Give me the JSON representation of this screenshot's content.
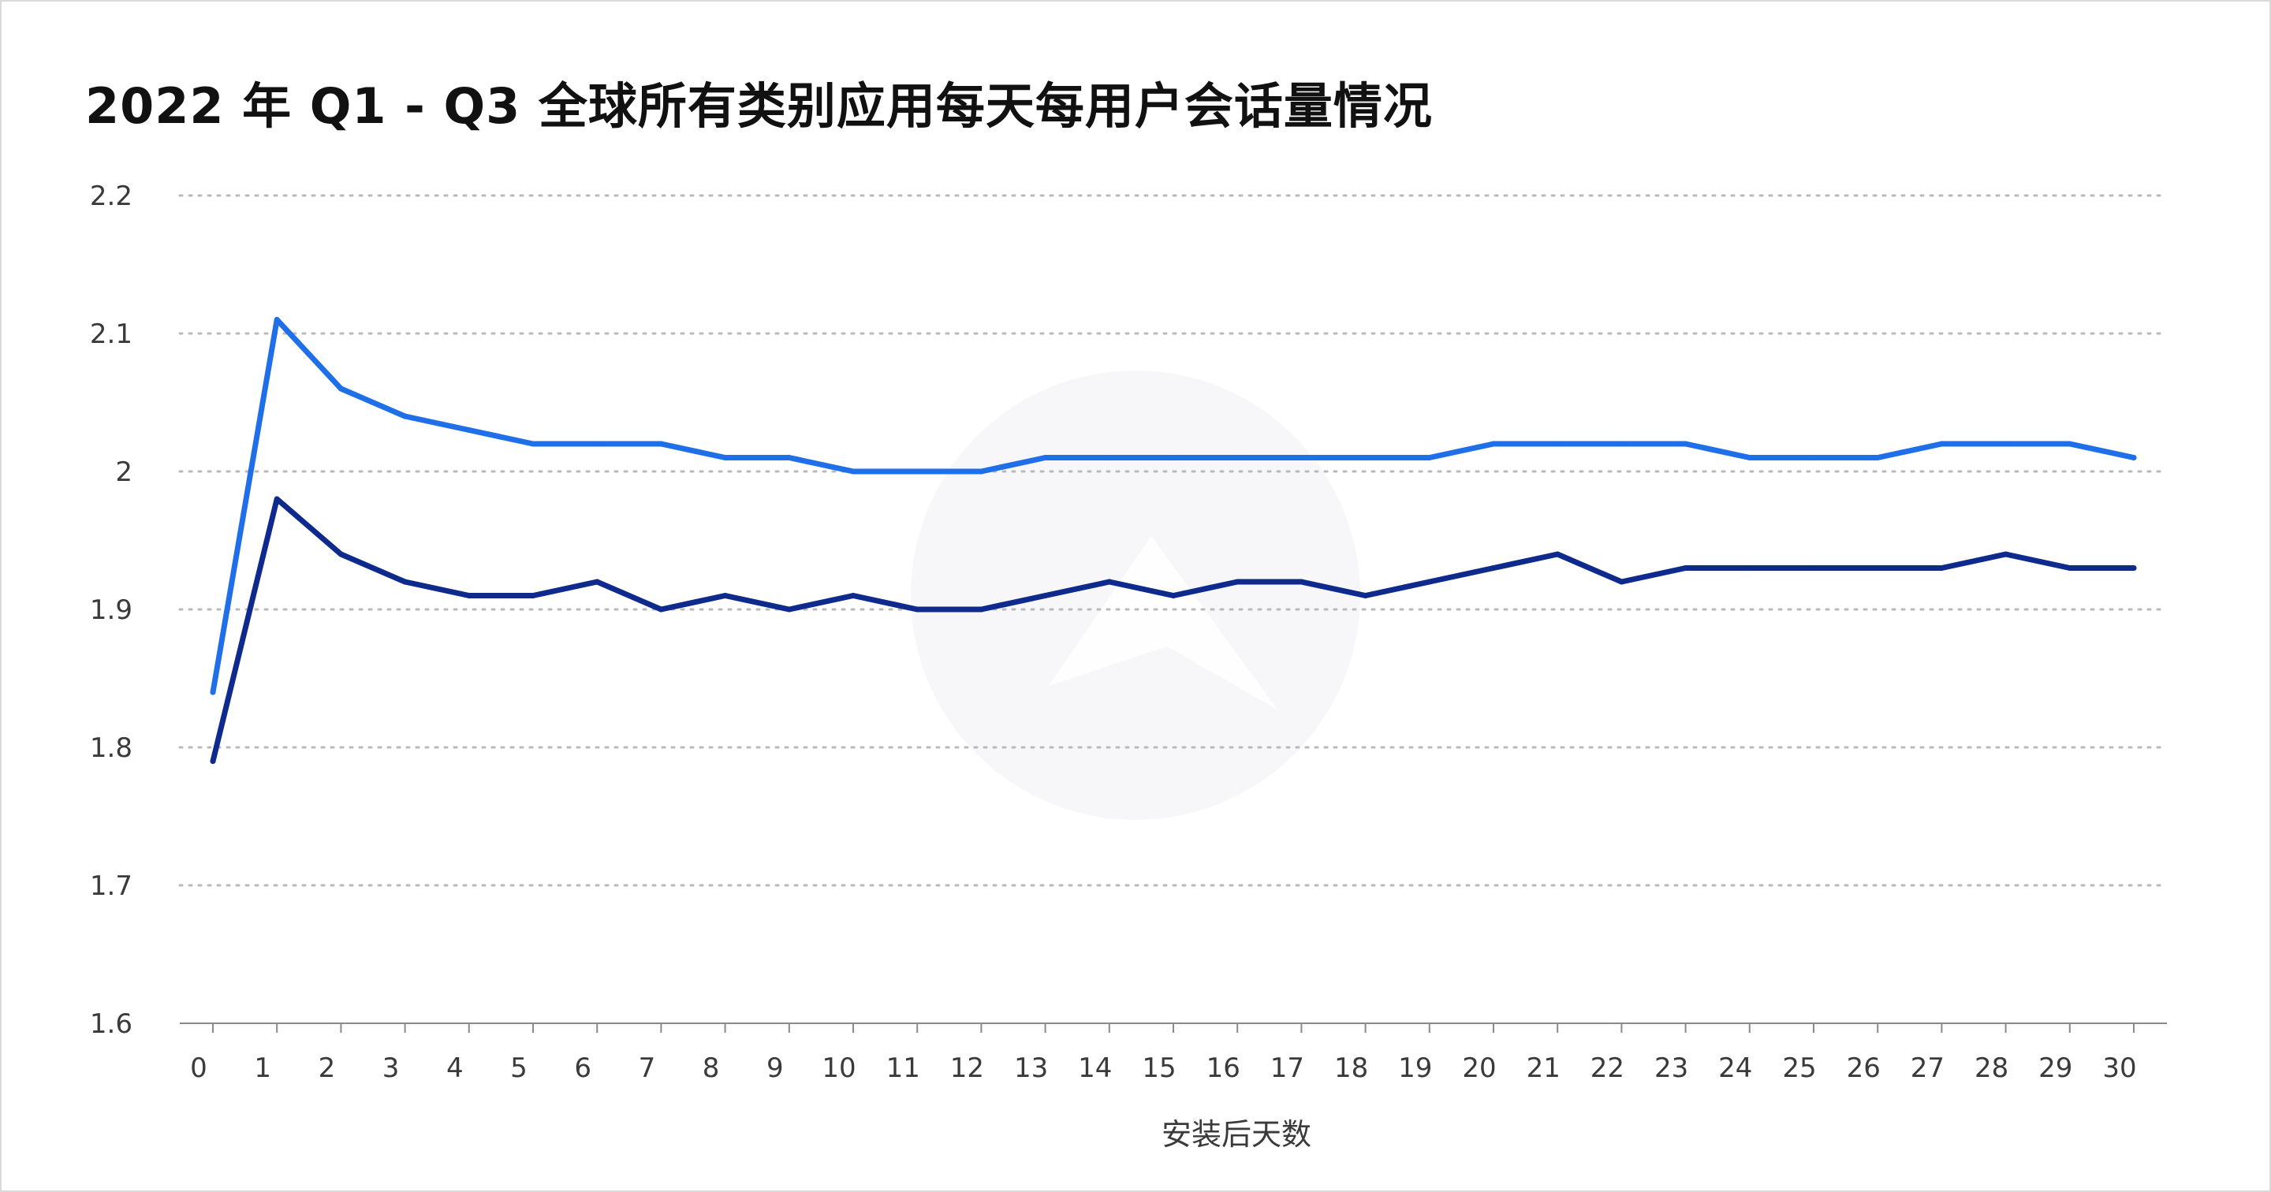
{
  "chart_data": {
    "type": "line",
    "title": "2022 年 Q1 - Q3 全球所有类别应用每天每用户会话量情况",
    "xlabel": "安装后天数",
    "ylabel": "",
    "x": [
      0,
      1,
      2,
      3,
      4,
      5,
      6,
      7,
      8,
      9,
      10,
      11,
      12,
      13,
      14,
      15,
      16,
      17,
      18,
      19,
      20,
      21,
      22,
      23,
      24,
      25,
      26,
      27,
      28,
      29,
      30
    ],
    "x_tick_labels": [
      "0",
      "1",
      "2",
      "3",
      "4",
      "5",
      "6",
      "7",
      "8",
      "9",
      "10",
      "11",
      "12",
      "13",
      "14",
      "15",
      "16",
      "17",
      "18",
      "19",
      "20",
      "21",
      "22",
      "23",
      "24",
      "25",
      "26",
      "27",
      "28",
      "29",
      "30"
    ],
    "ylim": [
      1.6,
      2.2
    ],
    "y_ticks": [
      1.6,
      1.7,
      1.8,
      1.9,
      2.0,
      2.1,
      2.2
    ],
    "y_tick_labels": [
      "1.6",
      "1.7",
      "1.8",
      "1.9",
      "2",
      "2.1",
      "2.2"
    ],
    "grid": "horizontal-dotted",
    "legend": "none",
    "series": [
      {
        "color": "#1f6fe8",
        "values": [
          1.84,
          2.11,
          2.06,
          2.04,
          2.03,
          2.02,
          2.02,
          2.02,
          2.01,
          2.01,
          2.0,
          2.0,
          2.0,
          2.01,
          2.01,
          2.01,
          2.01,
          2.01,
          2.01,
          2.01,
          2.02,
          2.02,
          2.02,
          2.02,
          2.01,
          2.01,
          2.01,
          2.02,
          2.02,
          2.02,
          2.01
        ]
      },
      {
        "color": "#0d2a8c",
        "values": [
          1.79,
          1.98,
          1.94,
          1.92,
          1.91,
          1.91,
          1.92,
          1.9,
          1.91,
          1.9,
          1.91,
          1.9,
          1.9,
          1.91,
          1.92,
          1.91,
          1.92,
          1.92,
          1.91,
          1.92,
          1.93,
          1.94,
          1.92,
          1.93,
          1.93,
          1.93,
          1.93,
          1.93,
          1.94,
          1.93,
          1.93
        ]
      }
    ]
  }
}
